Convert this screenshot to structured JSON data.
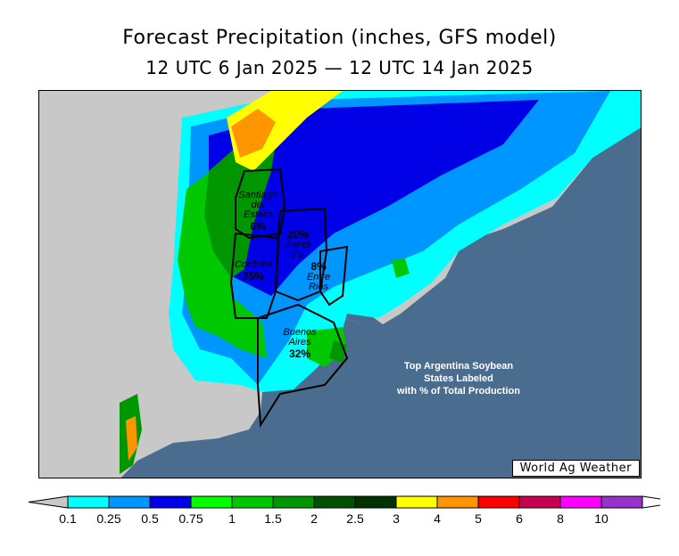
{
  "title": "Forecast Precipitation (inches, GFS model)",
  "subtitle": "12 UTC 6 Jan 2025 — 12 UTC 14 Jan 2025",
  "watermark": "World Ag Weather",
  "note_lines": [
    "Top Argentina Soybean",
    "States Labeled",
    "with % of Total Production"
  ],
  "states": [
    {
      "name_lines": [
        "Santiago",
        "del",
        "Estero"
      ],
      "pct": "6%"
    },
    {
      "name_lines": [
        "Santa",
        "Fe"
      ],
      "pct": "20%"
    },
    {
      "name_lines": [
        "Cordoba"
      ],
      "pct": "25%"
    },
    {
      "name_lines": [
        "Entre",
        "Rios"
      ],
      "pct": "8%"
    },
    {
      "name_lines": [
        "Buenos",
        "Aires"
      ],
      "pct": "32%"
    }
  ],
  "legend": {
    "labels": [
      "0.1",
      "0.25",
      "0.5",
      "0.75",
      "1",
      "1.5",
      "2",
      "2.5",
      "3",
      "4",
      "5",
      "6",
      "8",
      "10"
    ],
    "colors": [
      "#00ffff",
      "#0096ff",
      "#0000e6",
      "#00ff00",
      "#00c800",
      "#009600",
      "#005000",
      "#003200",
      "#ffff00",
      "#ff9600",
      "#ff0000",
      "#c80050",
      "#ff00ff",
      "#9632c8"
    ],
    "below_color": "#c8c8c8",
    "above_color": "#ffffff"
  },
  "colors": {
    "ocean": "#4a6d8f",
    "no_precip_land": "#c8c8c8"
  }
}
